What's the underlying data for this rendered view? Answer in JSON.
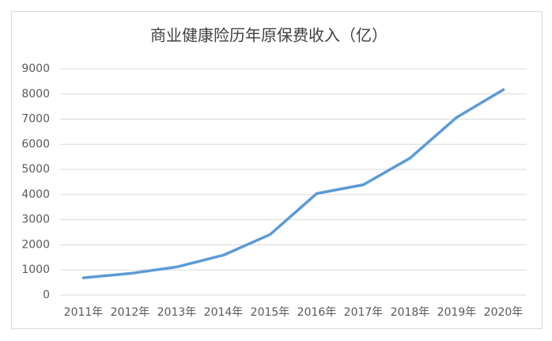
{
  "chart_data": {
    "type": "line",
    "title": "商业健康险历年原保费收入（亿）",
    "categories": [
      "2011年",
      "2012年",
      "2013年",
      "2014年",
      "2015年",
      "2016年",
      "2017年",
      "2018年",
      "2019年",
      "2020年"
    ],
    "values": [
      690,
      860,
      1120,
      1590,
      2410,
      4040,
      4390,
      5450,
      7070,
      8170
    ],
    "color": "#5b9bd5",
    "ylim": [
      0,
      9000
    ],
    "yticks": [
      0,
      1000,
      2000,
      3000,
      4000,
      5000,
      6000,
      7000,
      8000,
      9000
    ],
    "grid": true
  }
}
